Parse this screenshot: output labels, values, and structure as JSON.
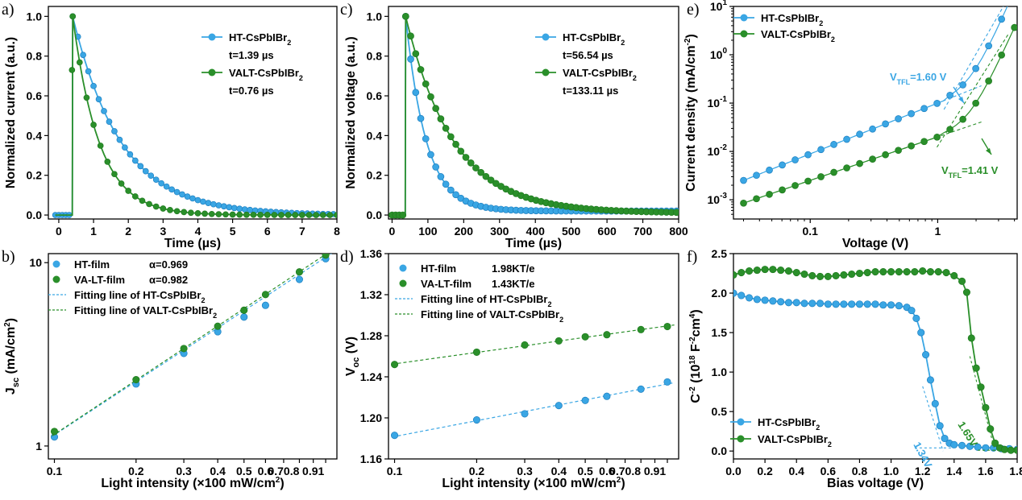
{
  "colors": {
    "blue": "#3aa6e4",
    "green": "#2a8f2a",
    "blue_dark": "#1d7fc0",
    "green_dark": "#1f7a1f"
  },
  "chart_data": [
    {
      "id": "a",
      "panel_label": "a)",
      "type": "line",
      "xlabel": "Time (µs)",
      "ylabel": "Normalized current (a.u.)",
      "xlim": [
        -0.3,
        8
      ],
      "ylim": [
        -0.02,
        1.05
      ],
      "xticks": [
        0,
        1,
        2,
        3,
        4,
        5,
        6,
        7,
        8
      ],
      "yticks": [
        0.0,
        0.2,
        0.4,
        0.6,
        0.8,
        1.0
      ],
      "ytick_labels": [
        "0.0",
        "0.2",
        "0.4",
        "0.6",
        "0.8",
        "1.0"
      ],
      "legend": [
        {
          "label": "HT-CsPbIBr",
          "sub": "2",
          "note": "t=1.39 µs",
          "color": "blue"
        },
        {
          "label": "VALT-CsPbIBr",
          "sub": "2",
          "note": "t=0.76 µs",
          "color": "green"
        }
      ],
      "series": [
        {
          "name": "HT-CsPbIBr2",
          "color": "blue",
          "kind": "decay",
          "t0": 0.4,
          "tau": 1.39,
          "x_start": -0.1,
          "x_end": 8,
          "pre_points": [
            -0.1,
            0.0,
            0.1,
            0.2,
            0.3
          ],
          "step": 0.15
        },
        {
          "name": "VALT-CsPbIBr2",
          "color": "green",
          "kind": "decay",
          "t0": 0.4,
          "tau": 0.76,
          "x_start": -0.1,
          "x_end": 8,
          "pre_points": [],
          "step": 0.2
        }
      ]
    },
    {
      "id": "c",
      "panel_label": "c)",
      "type": "line",
      "xlabel": "Time (µs)",
      "ylabel": "Normalized voltage (a.u.)",
      "xlim": [
        -10,
        800
      ],
      "ylim": [
        -0.02,
        1.05
      ],
      "xticks": [
        0,
        100,
        200,
        300,
        400,
        500,
        600,
        700,
        800
      ],
      "yticks": [
        0.0,
        0.2,
        0.4,
        0.6,
        0.8,
        1.0
      ],
      "ytick_labels": [
        "0.0",
        "0.2",
        "0.4",
        "0.6",
        "0.8",
        "1.0"
      ],
      "legend": [
        {
          "label": "HT-CsPbIBr",
          "sub": "2",
          "note": "t=56.54 µs",
          "color": "blue"
        },
        {
          "label": "VALT-CsPbIBr",
          "sub": "2",
          "note": "t=133.11 µs",
          "color": "green"
        }
      ],
      "series": [
        {
          "name": "HT-CsPbIBr2",
          "color": "blue",
          "kind": "decay",
          "t0": 38,
          "tau": 56.54,
          "offset": 0.02,
          "x_start": 0,
          "x_end": 800,
          "pre_points": [],
          "step": 14
        },
        {
          "name": "VALT-CsPbIBr2",
          "color": "green",
          "kind": "decay",
          "t0": 38,
          "tau": 133.11,
          "offset": 0.01,
          "x_start": 0,
          "x_end": 800,
          "pre_points": [
            0,
            10,
            20,
            30
          ],
          "step": 14
        }
      ]
    },
    {
      "id": "e",
      "panel_label": "e)",
      "type": "scatter",
      "xlabel": "Voltage (V)",
      "ylabel": "Current density (mA/cm²)",
      "xscale": "log",
      "yscale": "log",
      "xlim": [
        0.025,
        4.2
      ],
      "ylim": [
        0.0004,
        10
      ],
      "xticks": [
        0.1,
        1
      ],
      "xtick_labels": [
        "0.1",
        "1"
      ],
      "yticks": [
        0.001,
        0.01,
        0.1,
        1,
        10
      ],
      "ytick_exp": [
        "-3",
        "-2",
        "-1",
        "0",
        "1"
      ],
      "legend": [
        {
          "label": "HT-CsPbIBr",
          "sub": "2",
          "color": "blue"
        },
        {
          "label": "VALT-CsPbIBr",
          "sub": "2",
          "color": "green"
        }
      ],
      "annotations": [
        {
          "text": "=1.60 V",
          "prefix": "V",
          "sub": "TFL",
          "color": "blue",
          "value": 1.6
        },
        {
          "text": "=1.41 V",
          "prefix": "V",
          "sub": "TFL",
          "color": "green",
          "value": 1.41
        }
      ],
      "series": [
        {
          "name": "HT-CsPbIBr2",
          "color": "blue",
          "kind": "tfl",
          "a": 0.1,
          "n": 1.05,
          "vtfl": 1.6,
          "b": 0.34,
          "m": 6.0,
          "x_from": 0.03,
          "x_to": 4.0
        },
        {
          "name": "VALT-CsPbIBr2",
          "color": "green",
          "kind": "tfl",
          "a": 0.02,
          "n": 0.9,
          "vtfl": 1.41,
          "b": 0.034,
          "m": 5.8,
          "x_from": 0.03,
          "x_to": 4.0
        }
      ]
    },
    {
      "id": "b",
      "panel_label": "b)",
      "type": "scatter",
      "xlabel": "Light intensity (×100 mW/cm²)",
      "ylabel": "J (mA/cm²)",
      "xscale": "log",
      "yscale": "log",
      "xlim": [
        0.095,
        1.1
      ],
      "ylim": [
        0.85,
        11.2
      ],
      "xticks": [
        0.1,
        0.2,
        0.3,
        0.4,
        0.5,
        0.6,
        0.7,
        0.8,
        0.9,
        1
      ],
      "xtick_labels": [
        "0.1",
        "0.2",
        "0.3",
        "0.4",
        "0.5",
        "0.6",
        "0.70.8",
        "",
        "0.91",
        ""
      ],
      "yticks": [
        1,
        10
      ],
      "ytick_labels": [
        "1",
        "10"
      ],
      "legend": [
        {
          "label": "HT-film",
          "note": "α=0.969",
          "color": "blue",
          "marker": true
        },
        {
          "label": "VA-LT-film",
          "note": "α=0.982",
          "color": "green",
          "marker": true
        },
        {
          "label": "Fitting line of HT-CsPbIBr",
          "sub": "2",
          "color": "blue",
          "dash": true
        },
        {
          "label": "Fitting line of VALT-CsPbIBr",
          "sub": "2",
          "color": "green",
          "dash": true
        }
      ],
      "series": [
        {
          "name": "HT-film",
          "color": "blue",
          "x": [
            0.1,
            0.2,
            0.3,
            0.4,
            0.5,
            0.6,
            0.8,
            1.0
          ],
          "y": [
            1.12,
            2.18,
            3.2,
            4.2,
            5.05,
            5.85,
            8.1,
            10.5
          ],
          "fit": {
            "k": 10.7,
            "p": 0.969
          }
        },
        {
          "name": "VA-LT-film",
          "color": "green",
          "x": [
            0.1,
            0.2,
            0.3,
            0.4,
            0.5,
            0.6,
            0.8,
            1.0
          ],
          "y": [
            1.2,
            2.3,
            3.4,
            4.5,
            5.5,
            6.7,
            8.9,
            11.0
          ],
          "fit": {
            "k": 11.1,
            "p": 0.982
          }
        }
      ]
    },
    {
      "id": "d",
      "panel_label": "d)",
      "type": "scatter",
      "xlabel": "Light intensity (×100 mW/cm²)",
      "ylabel": "V (V)",
      "xscale": "log",
      "yscale": "linear",
      "xlim": [
        0.095,
        1.1
      ],
      "ylim": [
        1.16,
        1.36
      ],
      "xticks": [
        0.1,
        0.2,
        0.3,
        0.4,
        0.5,
        0.6,
        0.7,
        0.8,
        0.9,
        1
      ],
      "xtick_labels": [
        "0.1",
        "0.2",
        "0.3",
        "0.4",
        "0.5",
        "0.6",
        "0.70.8",
        "",
        "0.91",
        ""
      ],
      "yticks": [
        1.16,
        1.2,
        1.24,
        1.28,
        1.32,
        1.36
      ],
      "ytick_labels": [
        "1.16",
        "1.20",
        "1.24",
        "1.28",
        "1.32",
        "1.36"
      ],
      "legend": [
        {
          "label": "HT-film",
          "note": "1.98KT/e",
          "color": "blue",
          "marker": true
        },
        {
          "label": "VA-LT-film",
          "note": "1.43KT/e",
          "color": "green",
          "marker": true
        },
        {
          "label": "Fitting line of HT-CsPbIBr",
          "sub": "2",
          "color": "blue",
          "dash": true
        },
        {
          "label": "Fitting line of VALT-CsPbIBr",
          "sub": "2",
          "color": "green",
          "dash": true
        }
      ],
      "series": [
        {
          "name": "HT-film",
          "color": "blue",
          "x": [
            0.1,
            0.2,
            0.3,
            0.4,
            0.5,
            0.6,
            0.8,
            1.0
          ],
          "y": [
            1.183,
            1.198,
            1.204,
            1.212,
            1.217,
            1.221,
            1.228,
            1.235
          ]
        },
        {
          "name": "VA-LT-film",
          "color": "green",
          "x": [
            0.1,
            0.2,
            0.3,
            0.4,
            0.5,
            0.6,
            0.8,
            1.0
          ],
          "y": [
            1.252,
            1.264,
            1.271,
            1.275,
            1.279,
            1.281,
            1.286,
            1.289
          ]
        }
      ]
    },
    {
      "id": "f",
      "panel_label": "f)",
      "type": "line",
      "xlabel": "Bias voltage (V)",
      "ylabel": "C (10 F cm)",
      "xlim": [
        0.0,
        1.8
      ],
      "ylim": [
        -0.1,
        2.5
      ],
      "xticks": [
        0.0,
        0.2,
        0.4,
        0.6,
        0.8,
        1.0,
        1.2,
        1.4,
        1.6,
        1.8
      ],
      "xtick_labels": [
        "0.0",
        "0.2",
        "0.4",
        "0.6",
        "0.8",
        "1.0",
        "1.2",
        "1.4",
        "1.6",
        "1.8"
      ],
      "yticks": [
        0.0,
        0.5,
        1.0,
        1.5,
        2.0,
        2.5
      ],
      "ytick_labels": [
        "0.0",
        "0.5",
        "1.0",
        "1.5",
        "2.0",
        "2.5"
      ],
      "legend": [
        {
          "label": "HT-CsPbIBr",
          "sub": "2",
          "color": "blue"
        },
        {
          "label": "VALT-CsPbIBr",
          "sub": "2",
          "color": "green"
        }
      ],
      "annotations": [
        {
          "text": "1.34V",
          "color": "blue",
          "value": 1.34
        },
        {
          "text": "1.65V",
          "color": "green",
          "value": 1.65
        }
      ],
      "series": [
        {
          "name": "HT-CsPbIBr2",
          "color": "blue",
          "x": [
            0.0,
            0.05,
            0.1,
            0.15,
            0.2,
            0.25,
            0.3,
            0.35,
            0.4,
            0.45,
            0.5,
            0.55,
            0.6,
            0.65,
            0.7,
            0.75,
            0.8,
            0.85,
            0.9,
            0.95,
            1.0,
            1.05,
            1.1,
            1.13,
            1.16,
            1.19,
            1.22,
            1.25,
            1.28,
            1.31,
            1.34,
            1.37,
            1.4,
            1.45,
            1.5,
            1.55,
            1.6,
            1.65,
            1.7,
            1.75,
            1.8
          ],
          "y": [
            2.0,
            1.97,
            1.94,
            1.92,
            1.91,
            1.9,
            1.89,
            1.88,
            1.88,
            1.87,
            1.87,
            1.87,
            1.86,
            1.86,
            1.86,
            1.86,
            1.86,
            1.86,
            1.86,
            1.85,
            1.85,
            1.84,
            1.82,
            1.78,
            1.68,
            1.5,
            1.22,
            0.9,
            0.6,
            0.32,
            0.16,
            0.1,
            0.08,
            0.07,
            0.06,
            0.05,
            0.04,
            0.04,
            0.03,
            0.03,
            0.02
          ]
        },
        {
          "name": "VALT-CsPbIBr2",
          "color": "green",
          "x": [
            0.0,
            0.05,
            0.1,
            0.15,
            0.2,
            0.25,
            0.3,
            0.35,
            0.4,
            0.45,
            0.5,
            0.55,
            0.6,
            0.65,
            0.7,
            0.75,
            0.8,
            0.85,
            0.9,
            0.95,
            1.0,
            1.05,
            1.1,
            1.15,
            1.2,
            1.25,
            1.3,
            1.35,
            1.4,
            1.45,
            1.48,
            1.51,
            1.54,
            1.57,
            1.6,
            1.63,
            1.66,
            1.69,
            1.72,
            1.76,
            1.8
          ],
          "y": [
            2.23,
            2.26,
            2.28,
            2.29,
            2.3,
            2.3,
            2.29,
            2.28,
            2.26,
            2.24,
            2.22,
            2.21,
            2.21,
            2.22,
            2.23,
            2.24,
            2.25,
            2.26,
            2.27,
            2.27,
            2.27,
            2.27,
            2.27,
            2.27,
            2.28,
            2.27,
            2.27,
            2.26,
            2.22,
            2.15,
            2.01,
            1.43,
            1.05,
            0.81,
            0.55,
            0.28,
            0.1,
            0.04,
            0.02,
            0.01,
            0.01
          ]
        }
      ]
    }
  ]
}
